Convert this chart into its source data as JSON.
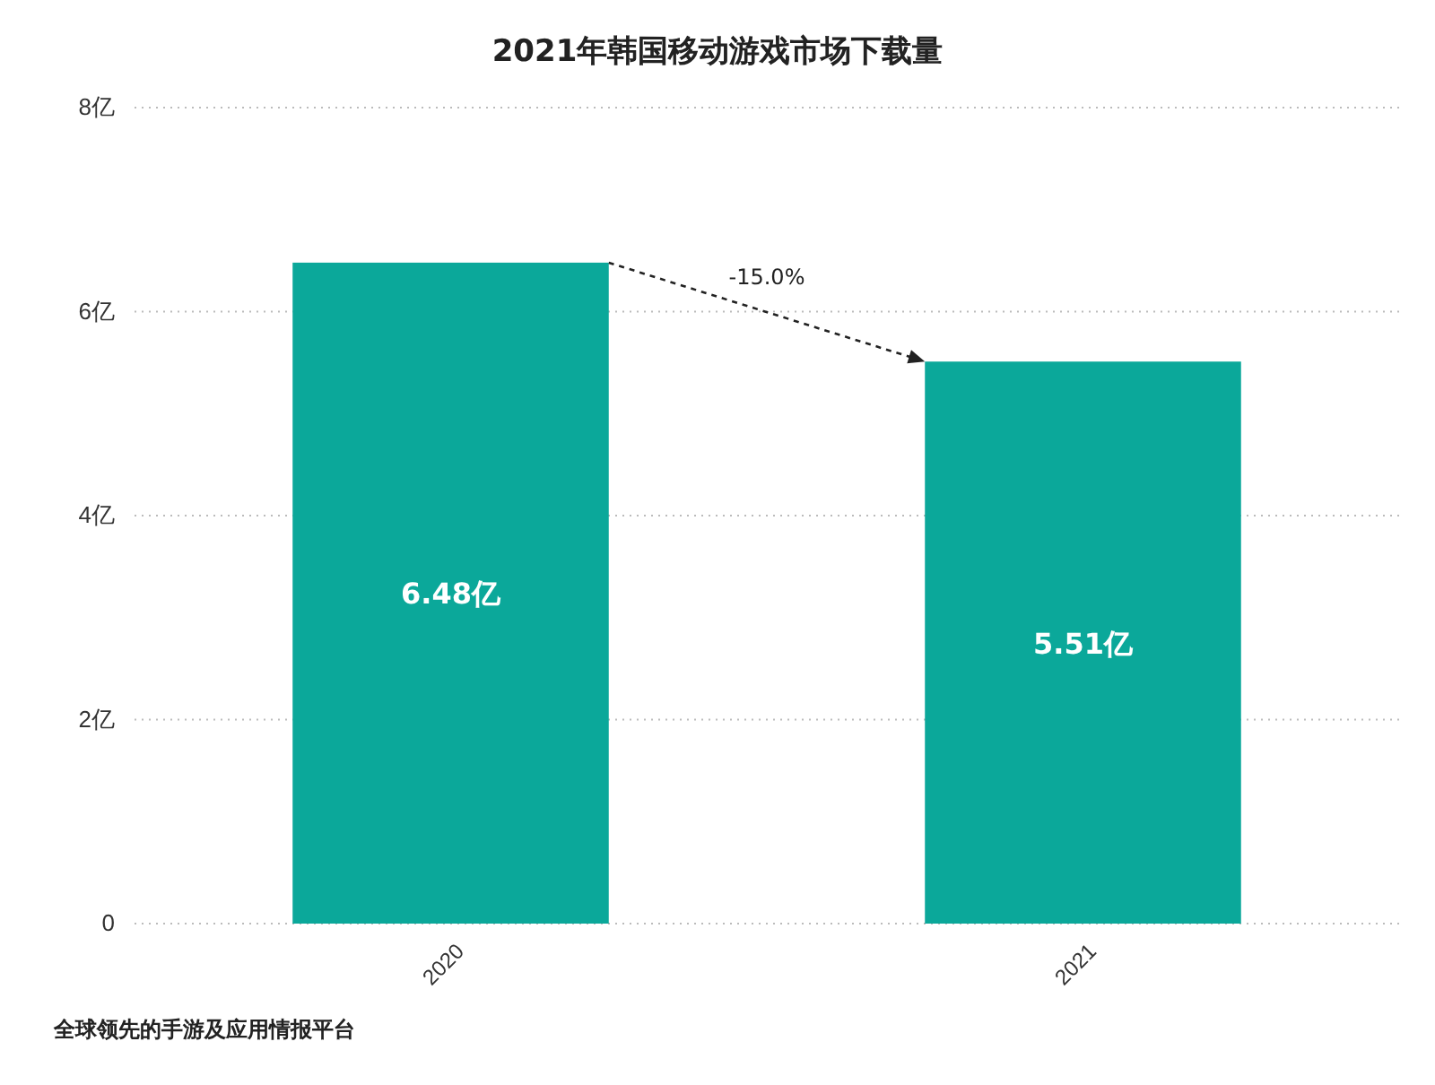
{
  "chart_data": {
    "type": "bar",
    "title": "2021年韩国移动游戏市场下载量",
    "categories": [
      "2020",
      "2021"
    ],
    "values": [
      6.48,
      5.51
    ],
    "value_labels": [
      "6.48亿",
      "5.51亿"
    ],
    "color": "#0ba89a",
    "ylim": [
      0,
      8
    ],
    "yticks": [
      0,
      {
        "value": 2,
        "label": "2亿"
      },
      {
        "value": 4,
        "label": "4亿"
      },
      {
        "value": 6,
        "label": "6亿"
      },
      {
        "value": 8,
        "label": "8亿"
      }
    ],
    "grid": "y",
    "annotations": [
      "-15.0%",
      "全球领先的手游及应用情报平台"
    ]
  }
}
